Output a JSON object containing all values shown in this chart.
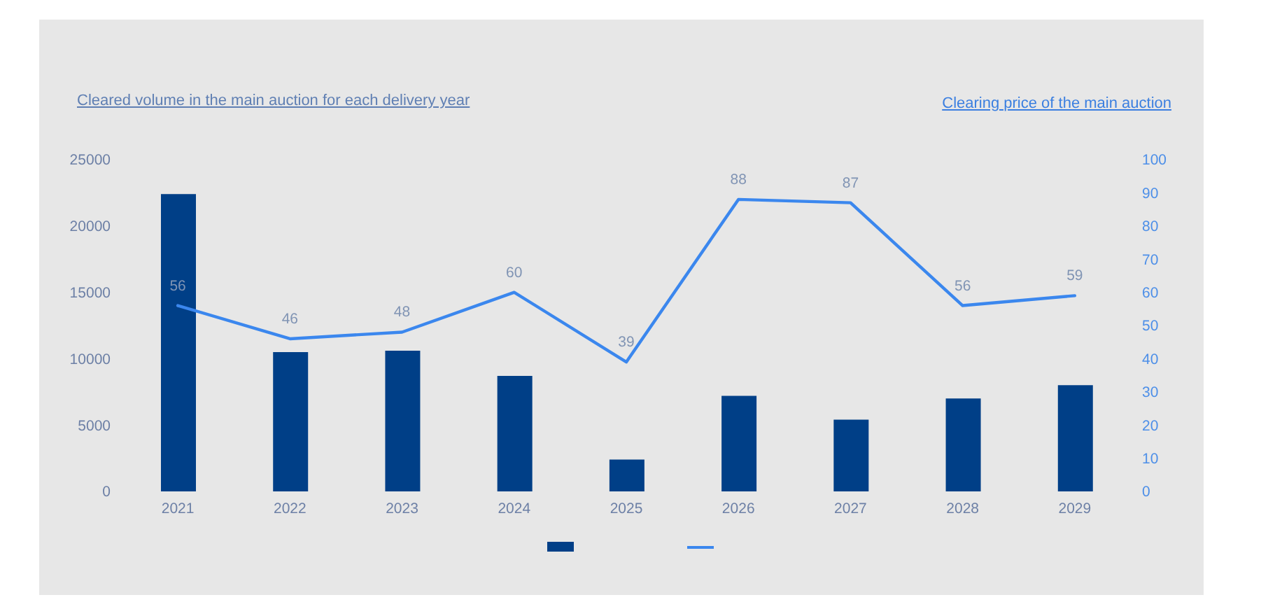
{
  "chart_data": {
    "type": "bar",
    "ylabel": "Cleared volume in the main auction for each delivery year",
    "y2label": "Clearing price of the main auction",
    "categories": [
      "2021",
      "2022",
      "2023",
      "2024",
      "2025",
      "2026",
      "2027",
      "2028",
      "2029"
    ],
    "series": [
      {
        "color": "#003f87",
        "values": [
          22400,
          10500,
          10600,
          8700,
          2400,
          7200,
          5400,
          7000,
          8000
        ]
      },
      {
        "type": "line",
        "axis": "y2",
        "color": "#3b87ee",
        "values": [
          56,
          46,
          48,
          60,
          39,
          88,
          87,
          56,
          59
        ],
        "value_labels": [
          "56",
          "46",
          "48",
          "60",
          "39",
          "88",
          "87",
          "56",
          "59"
        ]
      }
    ],
    "ylim": [
      0,
      25000
    ],
    "yticks": [
      0,
      5000,
      10000,
      15000,
      20000,
      25000
    ],
    "y2lim": [
      0,
      100
    ],
    "y2ticks": [
      0,
      10,
      20,
      30,
      40,
      50,
      60,
      70,
      80,
      90,
      100
    ],
    "marker": "none",
    "line_style": "solid"
  }
}
